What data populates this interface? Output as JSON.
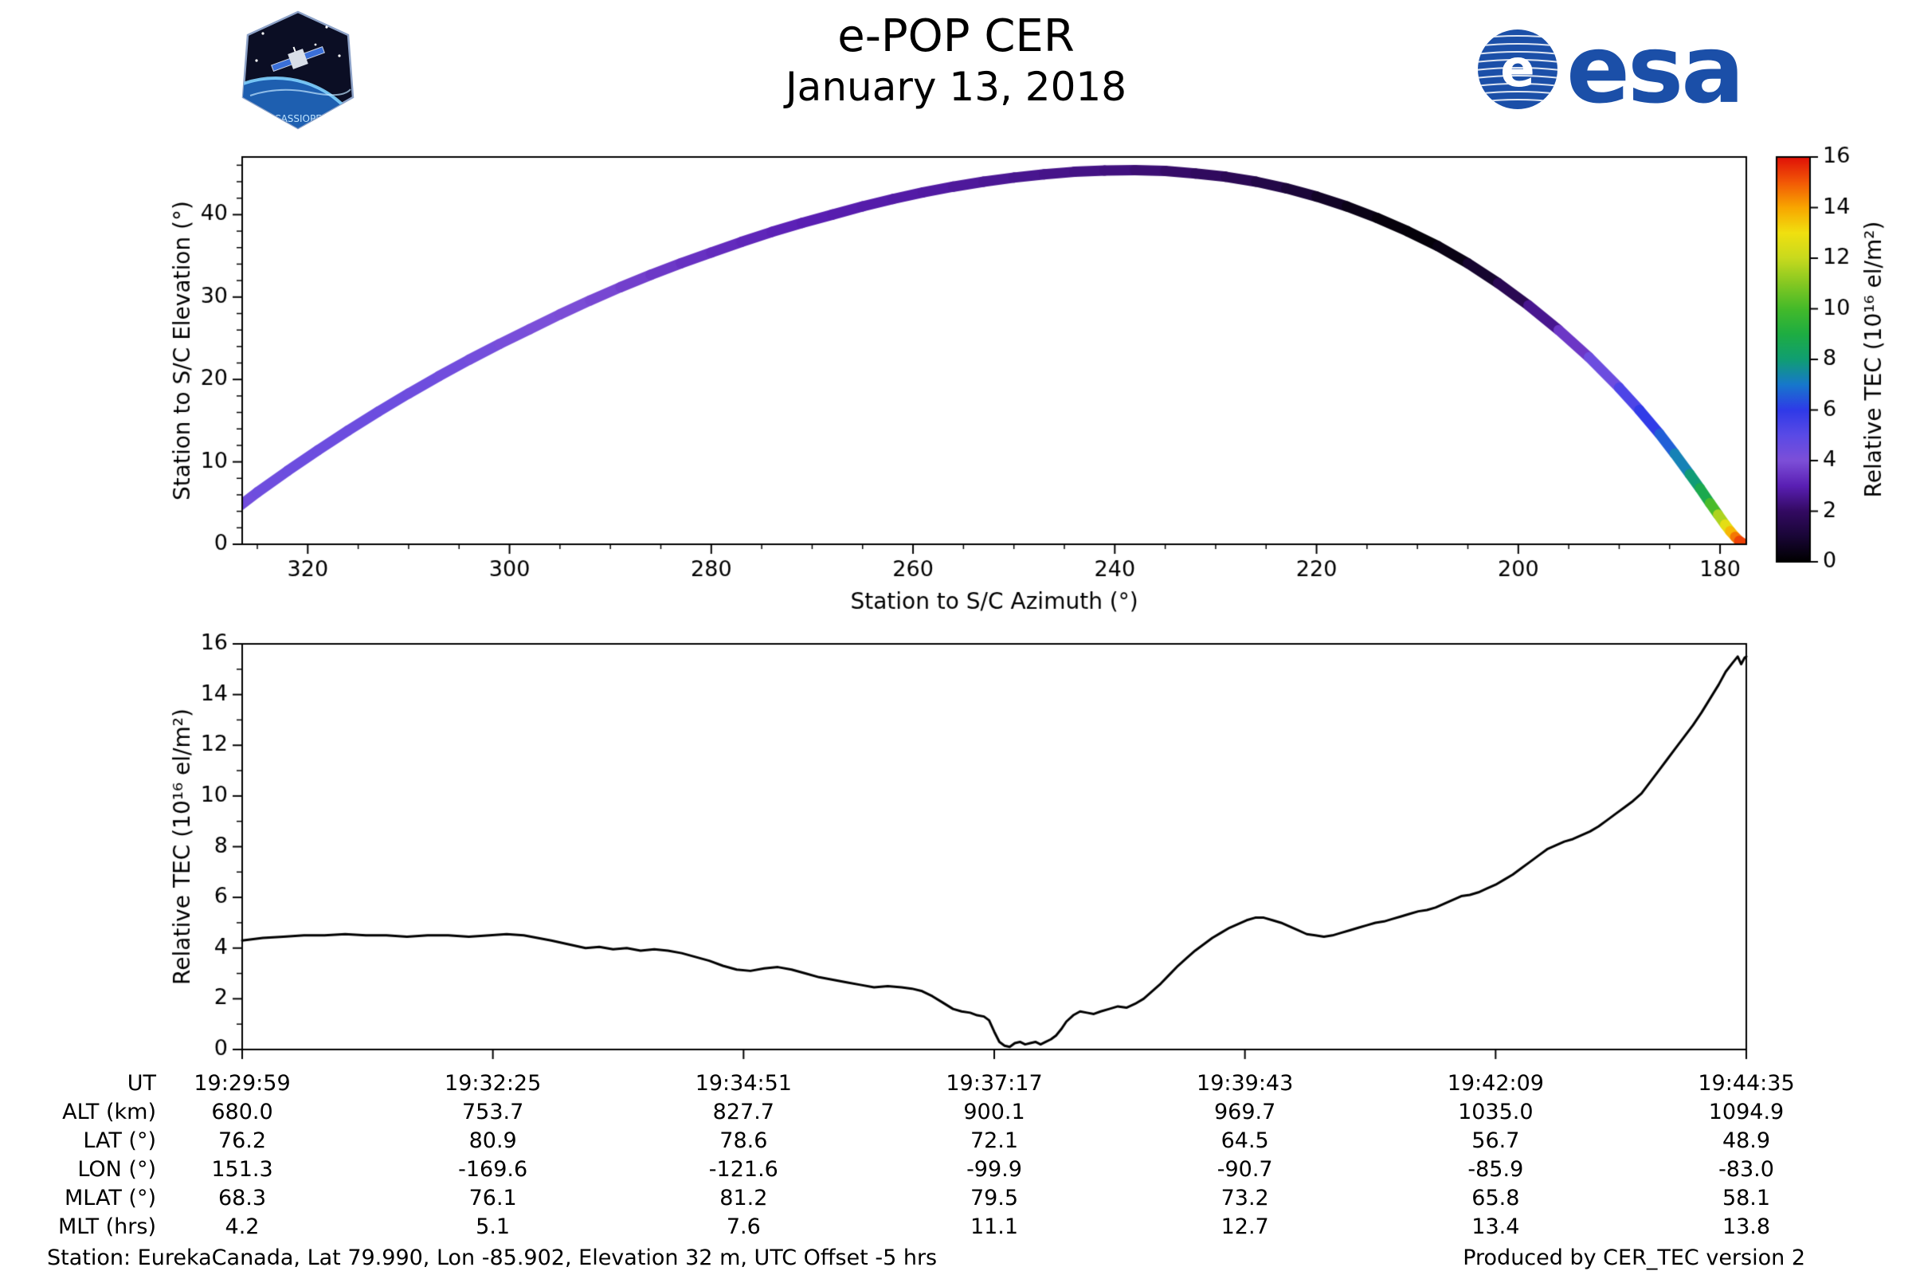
{
  "header": {
    "title": "e-POP CER",
    "date": "January 13, 2018",
    "esa_logo_text": "esa",
    "esa_globe_letter": "e",
    "mission_patch_text": "CASSIOPE"
  },
  "footer": {
    "station_info": "Station: EurekaCanada, Lat 79.990, Lon -85.902, Elevation 32 m, UTC Offset -5 hrs",
    "produced_by": "Produced by CER_TEC version 2"
  },
  "colors": {
    "esa_blue": "#1b4fa8",
    "line": "#000000",
    "frame": "#000000"
  },
  "chart_data": [
    {
      "type": "scatter",
      "name": "elevation-vs-azimuth-colored-by-tec",
      "xlabel": "Station to S/C Azimuth (°)",
      "ylabel": "Station to S/C Elevation (°)",
      "xlim": [
        326.5,
        177.4
      ],
      "ylim": [
        0,
        47
      ],
      "xticks": [
        320,
        300,
        280,
        260,
        240,
        220,
        200,
        180
      ],
      "yticks": [
        0,
        10,
        20,
        30,
        40
      ],
      "x_minor_step": 5,
      "y_minor_step": 2,
      "colorbar": {
        "label": "Relative TEC (10¹⁶ el/m²)",
        "min": 0,
        "max": 16,
        "ticks": [
          0,
          2,
          4,
          6,
          8,
          10,
          12,
          14,
          16
        ],
        "stops": [
          [
            0,
            "#000000"
          ],
          [
            1,
            "#190636"
          ],
          [
            2,
            "#330a62"
          ],
          [
            3,
            "#5a1fb4"
          ],
          [
            4,
            "#7d4fd8"
          ],
          [
            5,
            "#5a4ae6"
          ],
          [
            6,
            "#2f3ae8"
          ],
          [
            7,
            "#1778cc"
          ],
          [
            8,
            "#109e72"
          ],
          [
            9,
            "#1ead42"
          ],
          [
            10,
            "#44ba2a"
          ],
          [
            11,
            "#85c822"
          ],
          [
            12,
            "#c8da1e"
          ],
          [
            13,
            "#f0e010"
          ],
          [
            14,
            "#f8a600"
          ],
          [
            15,
            "#f25806"
          ],
          [
            16,
            "#e01008"
          ]
        ]
      },
      "track_point_format": [
        "azimuth_deg",
        "elevation_deg",
        "tec"
      ],
      "track": [
        [
          326.8,
          4.6,
          4.3
        ],
        [
          325,
          6.3,
          4.4
        ],
        [
          322,
          8.9,
          4.45
        ],
        [
          319,
          11.4,
          4.5
        ],
        [
          316,
          13.8,
          4.5
        ],
        [
          313,
          16.1,
          4.5
        ],
        [
          310,
          18.3,
          4.45
        ],
        [
          307,
          20.4,
          4.4
        ],
        [
          304,
          22.4,
          4.3
        ],
        [
          301,
          24.3,
          4.2
        ],
        [
          298,
          26.1,
          4.1
        ],
        [
          295,
          27.9,
          4.0
        ],
        [
          292,
          29.6,
          3.9
        ],
        [
          289,
          31.2,
          3.75
        ],
        [
          286,
          32.7,
          3.6
        ],
        [
          283,
          34.1,
          3.45
        ],
        [
          280,
          35.4,
          3.3
        ],
        [
          277,
          36.7,
          3.2
        ],
        [
          274,
          37.9,
          3.1
        ],
        [
          271,
          39.0,
          3.0
        ],
        [
          268,
          40.0,
          2.95
        ],
        [
          265,
          41.0,
          2.9
        ],
        [
          262,
          41.9,
          2.85
        ],
        [
          259,
          42.7,
          2.8
        ],
        [
          256,
          43.4,
          2.75
        ],
        [
          253,
          44.0,
          2.65
        ],
        [
          250,
          44.5,
          2.6
        ],
        [
          247,
          44.9,
          2.5
        ],
        [
          244,
          45.2,
          2.45
        ],
        [
          241,
          45.35,
          2.4
        ],
        [
          238,
          45.4,
          2.3
        ],
        [
          235,
          45.3,
          2.15
        ],
        [
          232,
          45.0,
          2.0
        ],
        [
          229,
          44.6,
          1.8
        ],
        [
          226,
          44.0,
          1.55
        ],
        [
          223,
          43.2,
          1.25
        ],
        [
          220,
          42.2,
          0.9
        ],
        [
          217,
          41.0,
          0.55
        ],
        [
          214,
          39.6,
          0.3
        ],
        [
          211,
          38.0,
          0.15
        ],
        [
          208,
          36.2,
          0.2
        ],
        [
          205,
          34.1,
          0.55
        ],
        [
          202,
          31.7,
          1.2
        ],
        [
          199,
          29.0,
          2.1
        ],
        [
          196,
          26.0,
          3.0
        ],
        [
          193,
          22.7,
          4.0
        ],
        [
          190,
          19.0,
          5.0
        ],
        [
          188,
          16.3,
          5.6
        ],
        [
          186,
          13.4,
          6.3
        ],
        [
          184.5,
          11.0,
          6.9
        ],
        [
          183,
          8.5,
          7.6
        ],
        [
          182,
          6.8,
          8.3
        ],
        [
          181,
          5.0,
          9.2
        ],
        [
          180.2,
          3.6,
          11.0
        ],
        [
          179.5,
          2.4,
          12.2
        ],
        [
          179,
          1.6,
          13.2
        ],
        [
          178.5,
          0.9,
          14.2
        ],
        [
          178.1,
          0.4,
          15.0
        ],
        [
          177.7,
          0.1,
          15.6
        ]
      ]
    },
    {
      "type": "line",
      "name": "relative-tec-timeseries",
      "ylabel": "Relative TEC (10¹⁶ el/m²)",
      "ylim": [
        0,
        16
      ],
      "yticks": [
        0,
        2,
        4,
        6,
        8,
        10,
        12,
        14,
        16
      ],
      "y_minor_step": 1,
      "x_range_seconds": [
        0,
        876
      ],
      "x_tick_seconds": [
        0,
        146,
        292,
        438,
        584,
        730,
        876
      ],
      "series_point_format": [
        "seconds_after_start",
        "tec"
      ],
      "series": [
        [
          0,
          4.3
        ],
        [
          12,
          4.4
        ],
        [
          24,
          4.45
        ],
        [
          36,
          4.5
        ],
        [
          48,
          4.5
        ],
        [
          60,
          4.55
        ],
        [
          72,
          4.5
        ],
        [
          84,
          4.5
        ],
        [
          96,
          4.45
        ],
        [
          108,
          4.5
        ],
        [
          120,
          4.5
        ],
        [
          132,
          4.45
        ],
        [
          144,
          4.5
        ],
        [
          154,
          4.55
        ],
        [
          164,
          4.5
        ],
        [
          172,
          4.4
        ],
        [
          180,
          4.3
        ],
        [
          190,
          4.15
        ],
        [
          200,
          4.0
        ],
        [
          208,
          4.05
        ],
        [
          216,
          3.95
        ],
        [
          224,
          4.0
        ],
        [
          232,
          3.9
        ],
        [
          240,
          3.95
        ],
        [
          248,
          3.9
        ],
        [
          256,
          3.8
        ],
        [
          264,
          3.65
        ],
        [
          272,
          3.5
        ],
        [
          280,
          3.3
        ],
        [
          288,
          3.15
        ],
        [
          296,
          3.1
        ],
        [
          304,
          3.2
        ],
        [
          312,
          3.25
        ],
        [
          320,
          3.15
        ],
        [
          328,
          3.0
        ],
        [
          336,
          2.85
        ],
        [
          344,
          2.75
        ],
        [
          352,
          2.65
        ],
        [
          360,
          2.55
        ],
        [
          368,
          2.45
        ],
        [
          376,
          2.5
        ],
        [
          384,
          2.45
        ],
        [
          390,
          2.4
        ],
        [
          396,
          2.3
        ],
        [
          402,
          2.1
        ],
        [
          408,
          1.85
        ],
        [
          414,
          1.6
        ],
        [
          419,
          1.5
        ],
        [
          424,
          1.45
        ],
        [
          428,
          1.35
        ],
        [
          432,
          1.3
        ],
        [
          435,
          1.15
        ],
        [
          438,
          0.7
        ],
        [
          441,
          0.3
        ],
        [
          444,
          0.15
        ],
        [
          447,
          0.1
        ],
        [
          450,
          0.25
        ],
        [
          453,
          0.3
        ],
        [
          456,
          0.2
        ],
        [
          459,
          0.25
        ],
        [
          462,
          0.3
        ],
        [
          465,
          0.2
        ],
        [
          468,
          0.3
        ],
        [
          471,
          0.4
        ],
        [
          474,
          0.55
        ],
        [
          477,
          0.8
        ],
        [
          480,
          1.1
        ],
        [
          484,
          1.35
        ],
        [
          488,
          1.5
        ],
        [
          492,
          1.45
        ],
        [
          496,
          1.4
        ],
        [
          500,
          1.5
        ],
        [
          505,
          1.6
        ],
        [
          510,
          1.7
        ],
        [
          515,
          1.65
        ],
        [
          520,
          1.8
        ],
        [
          525,
          2.0
        ],
        [
          530,
          2.3
        ],
        [
          535,
          2.6
        ],
        [
          540,
          2.95
        ],
        [
          545,
          3.3
        ],
        [
          550,
          3.6
        ],
        [
          555,
          3.9
        ],
        [
          560,
          4.15
        ],
        [
          565,
          4.4
        ],
        [
          570,
          4.6
        ],
        [
          575,
          4.8
        ],
        [
          580,
          4.95
        ],
        [
          585,
          5.1
        ],
        [
          590,
          5.2
        ],
        [
          595,
          5.2
        ],
        [
          600,
          5.1
        ],
        [
          605,
          5.0
        ],
        [
          610,
          4.85
        ],
        [
          615,
          4.7
        ],
        [
          620,
          4.55
        ],
        [
          625,
          4.5
        ],
        [
          630,
          4.45
        ],
        [
          635,
          4.5
        ],
        [
          640,
          4.6
        ],
        [
          645,
          4.7
        ],
        [
          650,
          4.8
        ],
        [
          655,
          4.9
        ],
        [
          660,
          5.0
        ],
        [
          665,
          5.05
        ],
        [
          670,
          5.15
        ],
        [
          675,
          5.25
        ],
        [
          680,
          5.35
        ],
        [
          685,
          5.45
        ],
        [
          690,
          5.5
        ],
        [
          695,
          5.6
        ],
        [
          700,
          5.75
        ],
        [
          705,
          5.9
        ],
        [
          710,
          6.05
        ],
        [
          715,
          6.1
        ],
        [
          720,
          6.2
        ],
        [
          725,
          6.35
        ],
        [
          730,
          6.5
        ],
        [
          735,
          6.7
        ],
        [
          740,
          6.9
        ],
        [
          745,
          7.15
        ],
        [
          750,
          7.4
        ],
        [
          755,
          7.65
        ],
        [
          760,
          7.9
        ],
        [
          765,
          8.05
        ],
        [
          770,
          8.2
        ],
        [
          775,
          8.3
        ],
        [
          780,
          8.45
        ],
        [
          785,
          8.6
        ],
        [
          790,
          8.8
        ],
        [
          795,
          9.05
        ],
        [
          800,
          9.3
        ],
        [
          805,
          9.55
        ],
        [
          810,
          9.8
        ],
        [
          815,
          10.1
        ],
        [
          820,
          10.55
        ],
        [
          825,
          11.0
        ],
        [
          830,
          11.45
        ],
        [
          835,
          11.9
        ],
        [
          840,
          12.35
        ],
        [
          845,
          12.8
        ],
        [
          850,
          13.3
        ],
        [
          855,
          13.85
        ],
        [
          860,
          14.4
        ],
        [
          864,
          14.9
        ],
        [
          868,
          15.25
        ],
        [
          871,
          15.5
        ],
        [
          873,
          15.2
        ],
        [
          875,
          15.45
        ],
        [
          876,
          15.5
        ]
      ]
    }
  ],
  "axis_table": {
    "rows": [
      {
        "label": "UT",
        "values": [
          "19:29:59",
          "19:32:25",
          "19:34:51",
          "19:37:17",
          "19:39:43",
          "19:42:09",
          "19:44:35"
        ]
      },
      {
        "label": "ALT (km)",
        "values": [
          "680.0",
          "753.7",
          "827.7",
          "900.1",
          "969.7",
          "1035.0",
          "1094.9"
        ]
      },
      {
        "label": "LAT (°)",
        "values": [
          "76.2",
          "80.9",
          "78.6",
          "72.1",
          "64.5",
          "56.7",
          "48.9"
        ]
      },
      {
        "label": "LON (°)",
        "values": [
          "151.3",
          "-169.6",
          "-121.6",
          "-99.9",
          "-90.7",
          "-85.9",
          "-83.0"
        ]
      },
      {
        "label": "MLAT (°)",
        "values": [
          "68.3",
          "76.1",
          "81.2",
          "79.5",
          "73.2",
          "65.8",
          "58.1"
        ]
      },
      {
        "label": "MLT (hrs)",
        "values": [
          "4.2",
          "5.1",
          "7.6",
          "11.1",
          "12.7",
          "13.4",
          "13.8"
        ]
      }
    ]
  }
}
